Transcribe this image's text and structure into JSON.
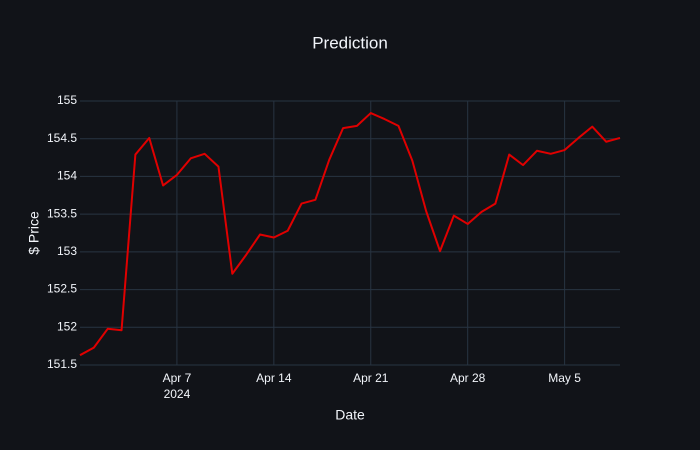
{
  "chart_data": {
    "type": "line",
    "title": "Prediction",
    "x_label": "Date",
    "y_label": "$ Price",
    "x": [
      "2024-03-31",
      "2024-04-01",
      "2024-04-02",
      "2024-04-03",
      "2024-04-04",
      "2024-04-05",
      "2024-04-06",
      "2024-04-07",
      "2024-04-08",
      "2024-04-09",
      "2024-04-10",
      "2024-04-11",
      "2024-04-12",
      "2024-04-13",
      "2024-04-14",
      "2024-04-15",
      "2024-04-16",
      "2024-04-17",
      "2024-04-18",
      "2024-04-19",
      "2024-04-20",
      "2024-04-21",
      "2024-04-22",
      "2024-04-23",
      "2024-04-24",
      "2024-04-25",
      "2024-04-26",
      "2024-04-27",
      "2024-04-28",
      "2024-04-29",
      "2024-04-30",
      "2024-05-01",
      "2024-05-02",
      "2024-05-03",
      "2024-05-04",
      "2024-05-05",
      "2024-05-06",
      "2024-05-07",
      "2024-05-08",
      "2024-05-09"
    ],
    "series": [
      {
        "color": "#e00000",
        "values": [
          151.63,
          151.73,
          151.98,
          151.96,
          154.29,
          154.51,
          153.88,
          154.02,
          154.24,
          154.3,
          154.13,
          152.71,
          152.96,
          153.23,
          153.19,
          153.28,
          153.64,
          153.69,
          154.22,
          154.64,
          154.67,
          154.84,
          154.76,
          154.67,
          154.21,
          153.54,
          153.01,
          153.48,
          153.37,
          153.53,
          153.64,
          154.29,
          154.15,
          154.34,
          154.3,
          154.35,
          154.51,
          154.66,
          154.46,
          154.51
        ]
      }
    ],
    "xlim": [
      "2024-03-31",
      "2024-05-09"
    ],
    "xticks": [
      {
        "value": "2024-04-07",
        "label": "Apr 7"
      },
      {
        "value": "2024-04-14",
        "label": "Apr 14"
      },
      {
        "value": "2024-04-21",
        "label": "Apr 21"
      },
      {
        "value": "2024-04-28",
        "label": "Apr 28"
      },
      {
        "value": "2024-05-05",
        "label": "May 5"
      }
    ],
    "x_year_label": "2024",
    "ylim": [
      151.5,
      155
    ],
    "yticks": [
      151.5,
      152,
      152.5,
      153,
      153.5,
      154,
      154.5,
      155
    ],
    "grid": true
  }
}
